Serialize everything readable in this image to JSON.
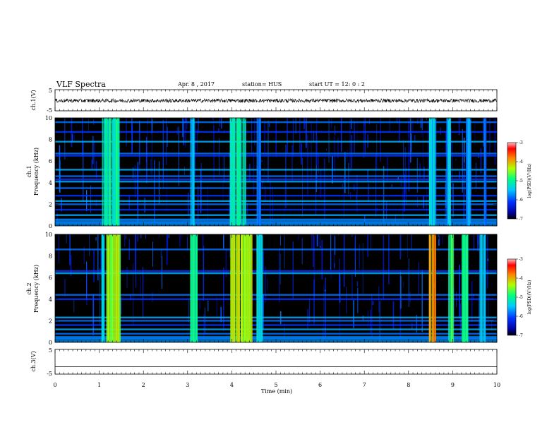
{
  "header": {
    "title": "VLF Spectra",
    "date": "Apr. 8 , 2017",
    "station": "station= HUS",
    "start": "start UT = 12: 0 : 2"
  },
  "chart_data": [
    {
      "type": "line",
      "panel": "ch1_waveform",
      "ylabel": "ch.1(V)",
      "ylim": [
        -5,
        5
      ],
      "yticks": [
        "5",
        "-5"
      ],
      "x": [
        0,
        10
      ],
      "series": [
        {
          "values": [
            -0.2,
            -0.2
          ],
          "note_values": "dense noise waveform, amplitude about ±1 V"
        }
      ]
    },
    {
      "type": "heatmap",
      "panel": "ch1_spectrogram",
      "ylabel": "ch.1 Frequency (kHz)",
      "xlim": [
        0,
        10
      ],
      "ylim": [
        0,
        10
      ],
      "yticks": [
        "0",
        "2",
        "4",
        "6",
        "8",
        "10"
      ],
      "colorbar": {
        "label": "log(PSD)(V²/Hz)",
        "range": [
          -7,
          -3
        ],
        "ticks": [
          "-3",
          "-4",
          "-5",
          "-6",
          "-7"
        ]
      },
      "horizontal_lines_khz": [
        0.3,
        0.6,
        1.0,
        1.5,
        2.0,
        2.3,
        2.8,
        3.5,
        4.1,
        4.3,
        4.6,
        5.2,
        6.5,
        6.7,
        7.8,
        8.7,
        9.6
      ],
      "bursts": [
        {
          "x0": 1.05,
          "x1": 1.45,
          "level": -5.1
        },
        {
          "x0": 3.05,
          "x1": 3.15,
          "level": -5.6
        },
        {
          "x0": 3.95,
          "x1": 4.3,
          "level": -5.2
        },
        {
          "x0": 4.55,
          "x1": 4.65,
          "level": -5.8
        },
        {
          "x0": 8.45,
          "x1": 8.6,
          "level": -5.4
        },
        {
          "x0": 8.85,
          "x1": 8.95,
          "level": -5.6
        },
        {
          "x0": 9.3,
          "x1": 9.4,
          "level": -5.8
        },
        {
          "x0": 9.7,
          "x1": 9.75,
          "level": -5.9
        }
      ]
    },
    {
      "type": "heatmap",
      "panel": "ch2_spectrogram",
      "ylabel": "ch.2 Frequency (kHz)",
      "xlim": [
        0,
        10
      ],
      "ylim": [
        0,
        10
      ],
      "yticks": [
        "0",
        "2",
        "4",
        "6",
        "8",
        "10"
      ],
      "colorbar": {
        "label": "log(PSD)(V²/Hz)",
        "range": [
          -7,
          -3
        ],
        "ticks": [
          "-3",
          "-4",
          "-5",
          "-6",
          "-7"
        ]
      },
      "horizontal_lines_khz": [
        0.4,
        0.8,
        1.2,
        1.6,
        2.0,
        2.3,
        4.0,
        4.4,
        6.4,
        6.6,
        8.6
      ],
      "bursts": [
        {
          "x0": 1.05,
          "x1": 1.1,
          "level": -5.4
        },
        {
          "x0": 1.15,
          "x1": 1.45,
          "level": -4.4
        },
        {
          "x0": 3.05,
          "x1": 3.2,
          "level": -5.0
        },
        {
          "x0": 3.95,
          "x1": 4.45,
          "level": -4.3
        },
        {
          "x0": 4.55,
          "x1": 4.7,
          "level": -5.3
        },
        {
          "x0": 8.45,
          "x1": 8.6,
          "level": -3.9
        },
        {
          "x0": 8.9,
          "x1": 9.0,
          "level": -4.9
        },
        {
          "x0": 9.2,
          "x1": 9.35,
          "level": -5.0
        },
        {
          "x0": 9.6,
          "x1": 9.75,
          "level": -5.4
        }
      ]
    },
    {
      "type": "line",
      "panel": "ch3_waveform",
      "ylabel": "ch.3(V)",
      "ylim": [
        -5,
        5
      ],
      "yticks": [
        "5",
        "-5"
      ],
      "series": [
        {
          "x": [
            0,
            10
          ],
          "values": [
            -2.0,
            -2.0
          ]
        }
      ],
      "xlabel": "Time (min)",
      "xticks": [
        "0",
        "1",
        "2",
        "3",
        "4",
        "5",
        "6",
        "7",
        "8",
        "9",
        "10"
      ]
    }
  ],
  "colors": {
    "background": "#000000",
    "noise_dim": "#00007a",
    "noise_bright": "#0040ff",
    "lines": "#00b8ff",
    "burst_low": "#00e0a0",
    "burst_high": "#ff2000"
  }
}
